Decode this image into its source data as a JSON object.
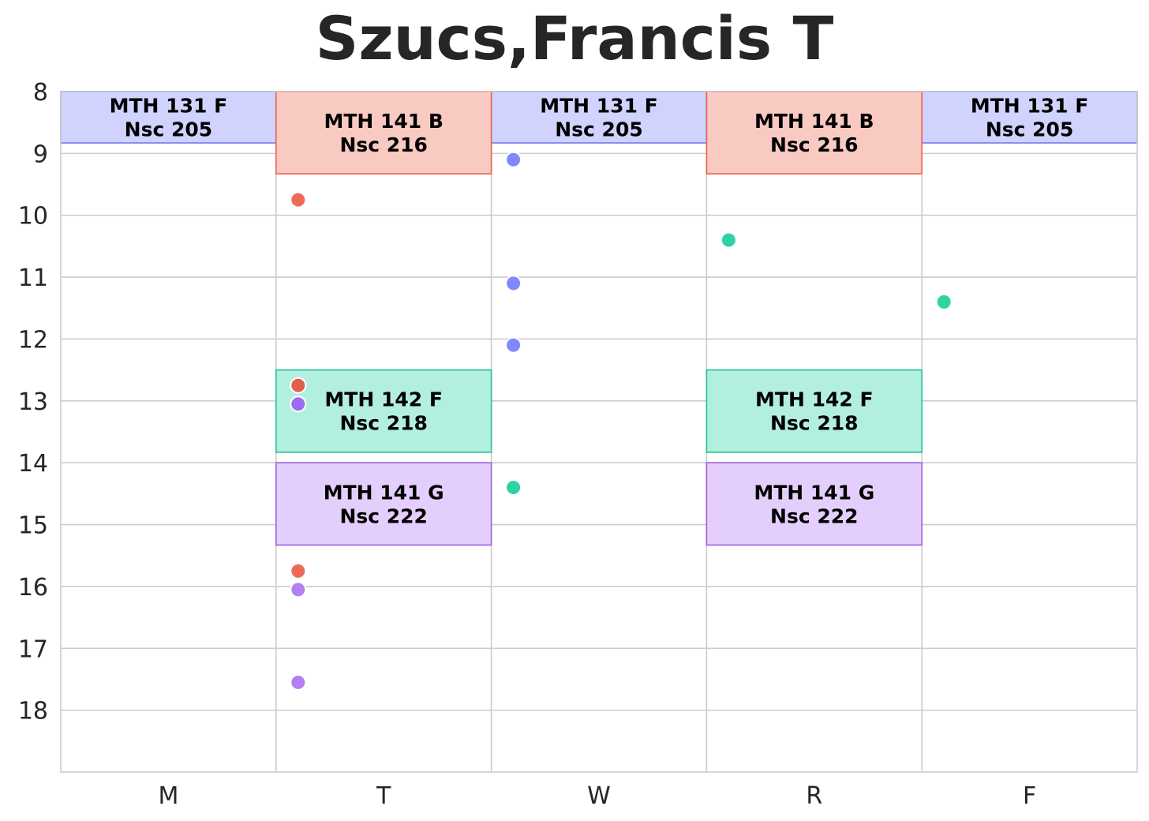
{
  "chart_data": {
    "type": "timeline",
    "title": "Szucs,Francis T",
    "categories": [
      "M",
      "T",
      "W",
      "R",
      "F"
    ],
    "ylim": [
      8,
      19
    ],
    "yticks": [
      8,
      9,
      10,
      11,
      12,
      13,
      14,
      15,
      16,
      17,
      18
    ],
    "y_inverted": true,
    "grid": true,
    "colors": {
      "MTH 131 F": {
        "fill": "#d1d3ff",
        "stroke": "#6f78f0"
      },
      "MTH 141 B": {
        "fill": "#f8cac2",
        "stroke": "#ee5f4d"
      },
      "MTH 142 F": {
        "fill": "#b3efdf",
        "stroke": "#22c391"
      },
      "MTH 141 G": {
        "fill": "#e4cffc",
        "stroke": "#a25bea"
      }
    },
    "blocks": [
      {
        "day": "M",
        "start": 8.0,
        "end": 8.83,
        "course": "MTH 131 F",
        "room": "Nsc 205"
      },
      {
        "day": "W",
        "start": 8.0,
        "end": 8.83,
        "course": "MTH 131 F",
        "room": "Nsc 205"
      },
      {
        "day": "F",
        "start": 8.0,
        "end": 8.83,
        "course": "MTH 131 F",
        "room": "Nsc 205"
      },
      {
        "day": "T",
        "start": 8.0,
        "end": 9.33,
        "course": "MTH 141 B",
        "room": "Nsc 216"
      },
      {
        "day": "R",
        "start": 8.0,
        "end": 9.33,
        "course": "MTH 141 B",
        "room": "Nsc 216"
      },
      {
        "day": "T",
        "start": 12.5,
        "end": 13.83,
        "course": "MTH 142 F",
        "room": "Nsc 218"
      },
      {
        "day": "R",
        "start": 12.5,
        "end": 13.83,
        "course": "MTH 142 F",
        "room": "Nsc 218"
      },
      {
        "day": "T",
        "start": 14.0,
        "end": 15.33,
        "course": "MTH 141 G",
        "room": "Nsc 222"
      },
      {
        "day": "R",
        "start": 14.0,
        "end": 15.33,
        "course": "MTH 141 G",
        "room": "Nsc 222"
      }
    ],
    "points": [
      {
        "day": "T",
        "time": 9.75,
        "color": "#ee6a58"
      },
      {
        "day": "T",
        "time": 12.75,
        "color": "#e0604e"
      },
      {
        "day": "T",
        "time": 13.05,
        "color": "#9b6cf0"
      },
      {
        "day": "T",
        "time": 15.75,
        "color": "#ee6a58"
      },
      {
        "day": "T",
        "time": 16.05,
        "color": "#b37ff5"
      },
      {
        "day": "T",
        "time": 17.55,
        "color": "#b37ff5"
      },
      {
        "day": "W",
        "time": 9.1,
        "color": "#8088ff"
      },
      {
        "day": "W",
        "time": 11.1,
        "color": "#8088ff"
      },
      {
        "day": "W",
        "time": 12.1,
        "color": "#8088ff"
      },
      {
        "day": "W",
        "time": 14.4,
        "color": "#2fd3a3"
      },
      {
        "day": "R",
        "time": 10.4,
        "color": "#2fd3a3"
      },
      {
        "day": "F",
        "time": 11.4,
        "color": "#2fd3a3"
      }
    ]
  }
}
